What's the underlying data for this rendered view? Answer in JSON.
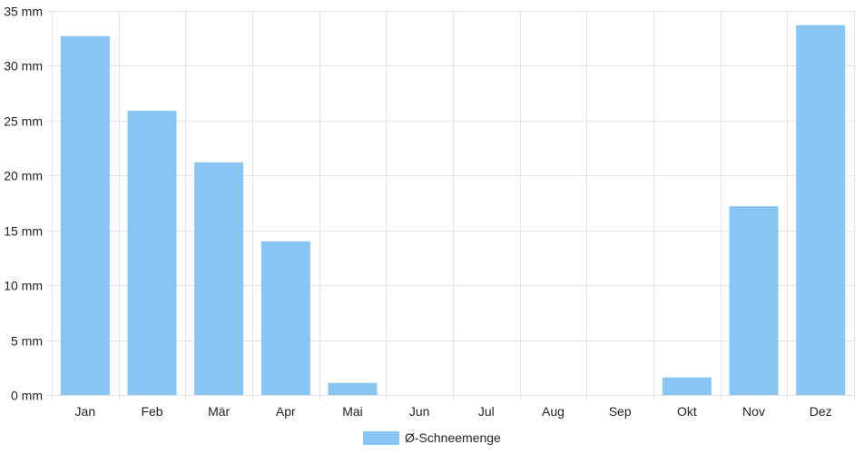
{
  "chart_data": {
    "type": "bar",
    "categories": [
      "Jan",
      "Feb",
      "Mär",
      "Apr",
      "Mai",
      "Jun",
      "Jul",
      "Aug",
      "Sep",
      "Okt",
      "Nov",
      "Dez"
    ],
    "series": [
      {
        "name": "Ø-Schneemenge",
        "values": [
          32.7,
          25.9,
          21.2,
          14.0,
          1.1,
          0,
          0,
          0,
          0,
          1.6,
          17.2,
          33.7
        ],
        "color": "#88c5f2"
      }
    ],
    "y_tick_labels": [
      "0 mm",
      "5 mm",
      "10 mm",
      "15 mm",
      "20 mm",
      "25 mm",
      "30 mm",
      "35 mm"
    ],
    "ylim": [
      0,
      35
    ],
    "y_step": 5,
    "grid": true,
    "legend_position": "bottom-center"
  }
}
